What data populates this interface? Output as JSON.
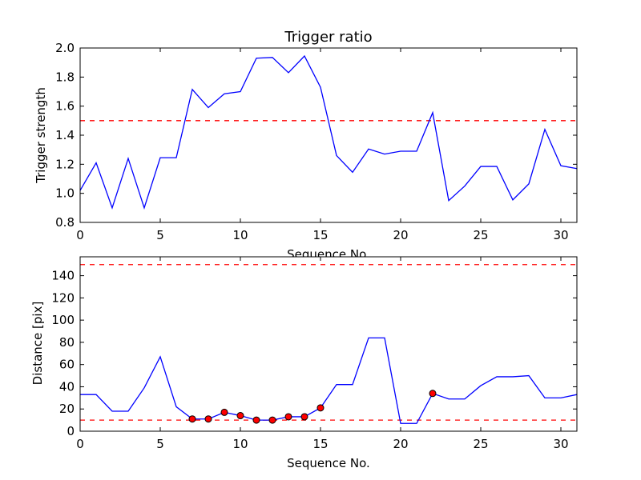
{
  "colors": {
    "series": "#0000ff",
    "threshold": "#ff0000",
    "marker_fill": "#ff0000",
    "marker_edge": "#000000",
    "background": "#ffffff"
  },
  "chart_data": [
    {
      "type": "line",
      "title": "Trigger ratio",
      "xlabel": "Sequence No.",
      "ylabel": "Trigger strength",
      "xlim": [
        0,
        31
      ],
      "ylim": [
        0.8,
        2.0
      ],
      "xticks": [
        "0",
        "5",
        "10",
        "15",
        "20",
        "25",
        "30"
      ],
      "yticks": [
        "0.8",
        "1.0",
        "1.2",
        "1.4",
        "1.6",
        "1.8",
        "2.0"
      ],
      "grid": false,
      "series": [
        {
          "style": "solid-blue",
          "x": [
            0,
            1,
            2,
            3,
            4,
            5,
            6,
            7,
            8,
            9,
            10,
            11,
            12,
            13,
            14,
            15,
            16,
            17,
            18,
            19,
            20,
            21,
            22,
            23,
            24,
            25,
            26,
            27,
            28,
            29,
            30,
            31
          ],
          "y": [
            1.02,
            1.21,
            0.9,
            1.24,
            0.9,
            1.245,
            1.245,
            1.715,
            1.59,
            1.685,
            1.7,
            1.93,
            1.935,
            1.83,
            1.945,
            1.73,
            1.26,
            1.145,
            1.305,
            1.27,
            1.29,
            1.29,
            1.555,
            0.95,
            1.05,
            1.185,
            1.185,
            0.955,
            1.065,
            1.44,
            1.19,
            1.17
          ]
        }
      ],
      "hlines": [
        {
          "y": 1.5,
          "style": "dashed-red"
        }
      ]
    },
    {
      "type": "line",
      "title": "",
      "xlabel": "Sequence No.",
      "ylabel": "Distance [pix]",
      "xlim": [
        0,
        31
      ],
      "ylim": [
        0,
        157
      ],
      "xticks": [
        "0",
        "5",
        "10",
        "15",
        "20",
        "25",
        "30"
      ],
      "yticks": [
        "0",
        "20",
        "40",
        "60",
        "80",
        "100",
        "120",
        "140"
      ],
      "grid": false,
      "series": [
        {
          "style": "solid-blue",
          "x": [
            0,
            1,
            2,
            3,
            4,
            5,
            6,
            7,
            8,
            9,
            10,
            11,
            12,
            13,
            14,
            15,
            16,
            17,
            18,
            19,
            20,
            21,
            22,
            23,
            24,
            25,
            26,
            27,
            28,
            29,
            30,
            31
          ],
          "y": [
            33,
            33,
            18,
            18,
            39,
            67,
            22,
            11,
            11,
            17,
            14,
            10,
            10,
            13,
            13,
            21,
            42,
            42,
            84,
            84,
            7,
            7,
            34,
            29,
            29,
            41,
            49,
            49,
            50,
            30,
            30,
            33
          ]
        },
        {
          "style": "red-circle-markers",
          "x": [
            7,
            8,
            9,
            10,
            11,
            12,
            13,
            14,
            15,
            22
          ],
          "y": [
            11,
            11,
            17,
            14,
            10,
            10,
            13,
            13,
            21,
            34
          ]
        }
      ],
      "hlines": [
        {
          "y": 150,
          "style": "dashed-red"
        },
        {
          "y": 10,
          "style": "dashed-red"
        }
      ]
    }
  ]
}
